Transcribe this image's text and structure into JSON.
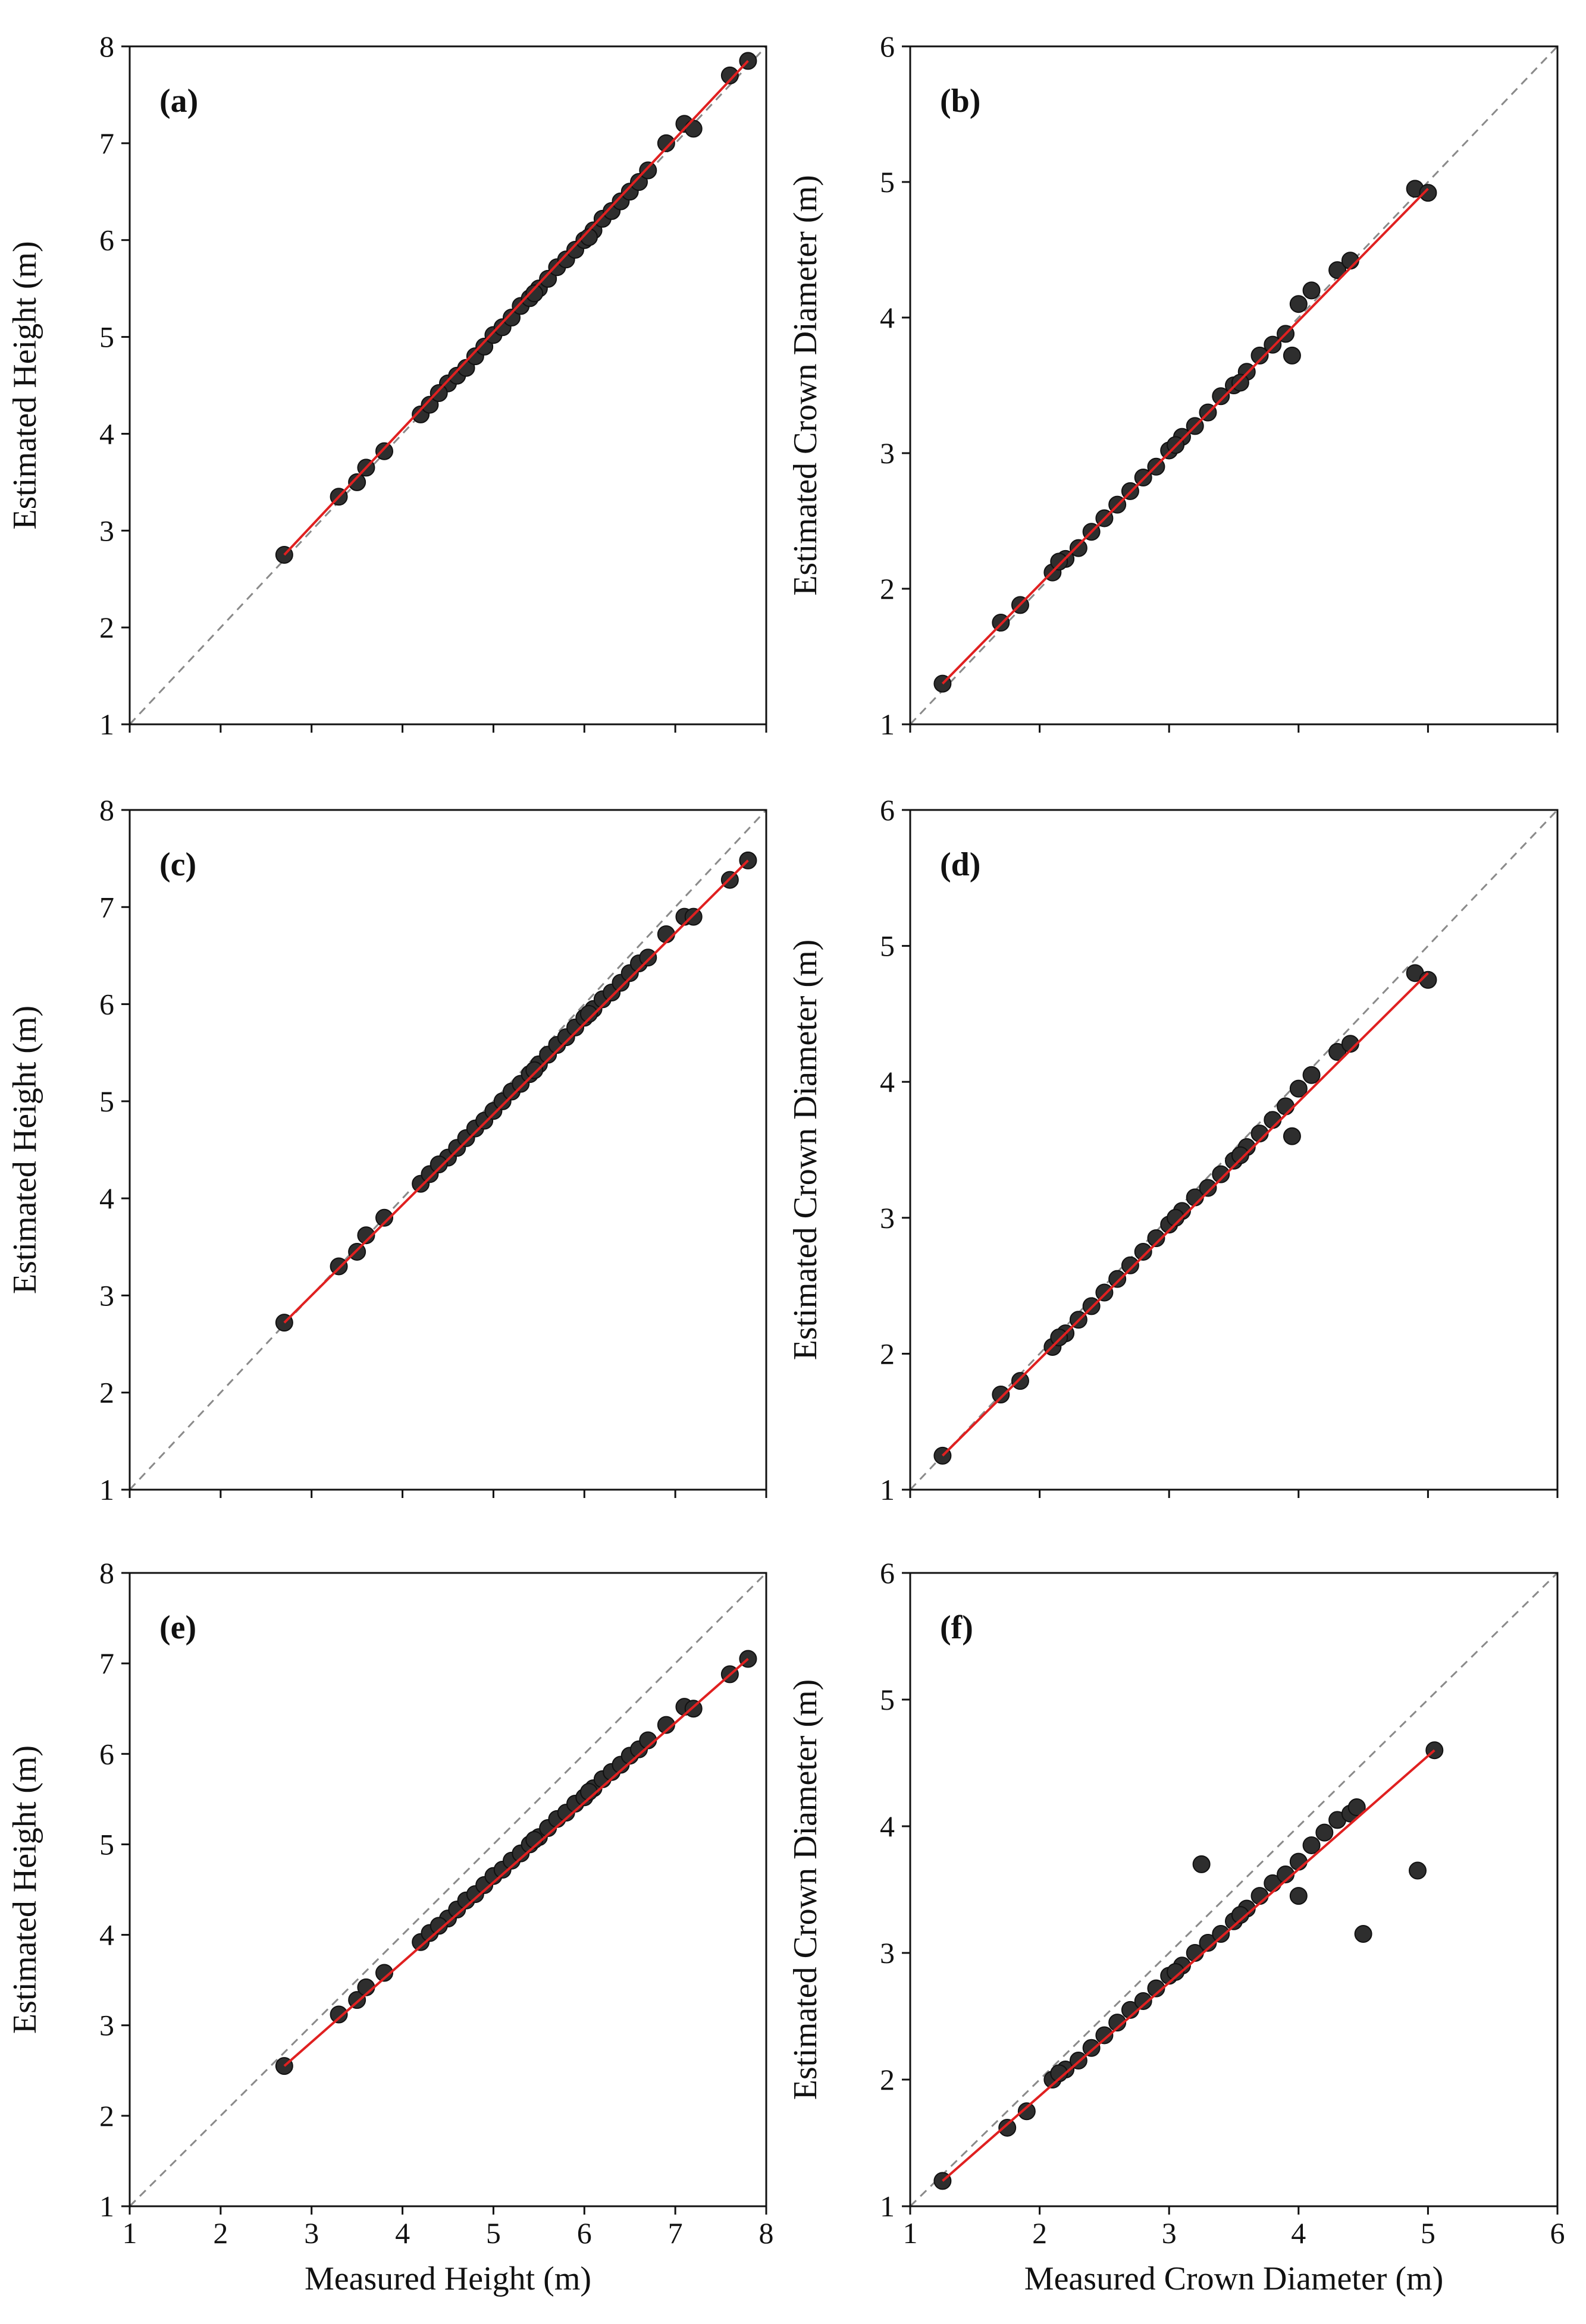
{
  "chart_data": [
    {
      "type": "scatter",
      "panel": "(a)",
      "xlabel": "",
      "ylabel": "Estimated Height (m)",
      "xlim": [
        1,
        8
      ],
      "ylim": [
        1,
        8
      ],
      "xticks": [
        "1",
        "2",
        "3",
        "4",
        "5",
        "6",
        "7",
        "8"
      ],
      "yticks": [
        "1",
        "2",
        "3",
        "4",
        "5",
        "6",
        "7",
        "8"
      ],
      "show_xtick_labels": false,
      "reference_line": "1:1",
      "fit_line": {
        "x": [
          2.7,
          7.8
        ],
        "y": [
          2.75,
          7.85
        ]
      },
      "points": {
        "x": [
          2.7,
          3.3,
          3.5,
          3.6,
          3.8,
          4.2,
          4.3,
          4.5,
          4.6,
          4.7,
          4.8,
          4.9,
          5.0,
          5.1,
          5.2,
          5.3,
          5.4,
          5.5,
          5.6,
          5.7,
          5.8,
          5.9,
          6.0,
          6.1,
          6.2,
          6.3,
          6.4,
          6.5,
          6.6,
          6.7,
          6.9,
          7.1,
          7.2,
          7.6,
          7.8,
          4.4,
          5.45,
          6.05
        ],
        "y": [
          2.75,
          3.35,
          3.5,
          3.65,
          3.82,
          4.2,
          4.3,
          4.52,
          4.6,
          4.68,
          4.8,
          4.9,
          5.02,
          5.1,
          5.2,
          5.32,
          5.4,
          5.5,
          5.6,
          5.72,
          5.8,
          5.9,
          6.0,
          6.1,
          6.22,
          6.3,
          6.4,
          6.5,
          6.6,
          6.72,
          7.0,
          7.2,
          7.15,
          7.7,
          7.85,
          4.42,
          5.45,
          6.03
        ]
      }
    },
    {
      "type": "scatter",
      "panel": "(b)",
      "xlabel": "",
      "ylabel": "Estimated Crown Diameter (m)",
      "xlim": [
        1,
        6
      ],
      "ylim": [
        1,
        6
      ],
      "xticks": [
        "1",
        "2",
        "3",
        "4",
        "5",
        "6"
      ],
      "yticks": [
        "1",
        "2",
        "3",
        "4",
        "5",
        "6"
      ],
      "show_xtick_labels": false,
      "reference_line": "1:1",
      "fit_line": {
        "x": [
          1.25,
          5.0
        ],
        "y": [
          1.3,
          4.95
        ]
      },
      "points": {
        "x": [
          1.25,
          1.7,
          1.85,
          2.1,
          2.2,
          2.3,
          2.4,
          2.5,
          2.6,
          2.7,
          2.8,
          2.9,
          3.0,
          3.1,
          3.2,
          3.3,
          3.4,
          3.5,
          3.6,
          3.7,
          3.8,
          3.9,
          3.95,
          4.0,
          4.1,
          4.3,
          4.4,
          4.9,
          5.0,
          2.15,
          3.05,
          3.55
        ],
        "y": [
          1.3,
          1.75,
          1.88,
          2.12,
          2.22,
          2.3,
          2.42,
          2.52,
          2.62,
          2.72,
          2.82,
          2.9,
          3.02,
          3.12,
          3.2,
          3.3,
          3.42,
          3.5,
          3.6,
          3.72,
          3.8,
          3.88,
          3.72,
          4.1,
          4.2,
          4.35,
          4.42,
          4.95,
          4.92,
          2.2,
          3.06,
          3.52
        ]
      }
    },
    {
      "type": "scatter",
      "panel": "(c)",
      "xlabel": "",
      "ylabel": "Estimated Height (m)",
      "xlim": [
        1,
        8
      ],
      "ylim": [
        1,
        8
      ],
      "xticks": [
        "1",
        "2",
        "3",
        "4",
        "5",
        "6",
        "7",
        "8"
      ],
      "yticks": [
        "1",
        "2",
        "3",
        "4",
        "5",
        "6",
        "7",
        "8"
      ],
      "show_xtick_labels": false,
      "reference_line": "1:1",
      "fit_line": {
        "x": [
          2.7,
          7.8
        ],
        "y": [
          2.72,
          7.48
        ]
      },
      "points": {
        "x": [
          2.7,
          3.3,
          3.5,
          3.6,
          3.8,
          4.2,
          4.3,
          4.5,
          4.6,
          4.7,
          4.8,
          4.9,
          5.0,
          5.1,
          5.2,
          5.3,
          5.4,
          5.5,
          5.6,
          5.7,
          5.8,
          5.9,
          6.0,
          6.1,
          6.2,
          6.3,
          6.4,
          6.5,
          6.6,
          6.7,
          6.9,
          7.1,
          7.2,
          7.6,
          7.8,
          4.4,
          5.45,
          6.05
        ],
        "y": [
          2.72,
          3.3,
          3.45,
          3.62,
          3.8,
          4.15,
          4.25,
          4.42,
          4.52,
          4.62,
          4.72,
          4.8,
          4.9,
          5.0,
          5.1,
          5.18,
          5.28,
          5.38,
          5.48,
          5.58,
          5.66,
          5.76,
          5.86,
          5.95,
          6.05,
          6.12,
          6.22,
          6.32,
          6.42,
          6.48,
          6.72,
          6.9,
          6.9,
          7.28,
          7.48,
          4.35,
          5.32,
          5.9
        ]
      }
    },
    {
      "type": "scatter",
      "panel": "(d)",
      "xlabel": "",
      "ylabel": "Estimated Crown Diameter (m)",
      "xlim": [
        1,
        6
      ],
      "ylim": [
        1,
        6
      ],
      "xticks": [
        "1",
        "2",
        "3",
        "4",
        "5",
        "6"
      ],
      "yticks": [
        "1",
        "2",
        "3",
        "4",
        "5",
        "6"
      ],
      "show_xtick_labels": false,
      "reference_line": "1:1",
      "fit_line": {
        "x": [
          1.25,
          5.0
        ],
        "y": [
          1.25,
          4.8
        ]
      },
      "points": {
        "x": [
          1.25,
          1.7,
          1.85,
          2.1,
          2.2,
          2.3,
          2.4,
          2.5,
          2.6,
          2.7,
          2.8,
          2.9,
          3.0,
          3.1,
          3.2,
          3.3,
          3.4,
          3.5,
          3.6,
          3.7,
          3.8,
          3.9,
          3.95,
          4.0,
          4.1,
          4.3,
          4.4,
          4.9,
          5.0,
          2.15,
          3.05,
          3.55
        ],
        "y": [
          1.25,
          1.7,
          1.8,
          2.05,
          2.15,
          2.25,
          2.35,
          2.45,
          2.55,
          2.65,
          2.75,
          2.85,
          2.95,
          3.05,
          3.15,
          3.22,
          3.32,
          3.42,
          3.52,
          3.62,
          3.72,
          3.82,
          3.6,
          3.95,
          4.05,
          4.22,
          4.28,
          4.8,
          4.75,
          2.12,
          3.0,
          3.46
        ]
      }
    },
    {
      "type": "scatter",
      "panel": "(e)",
      "xlabel": "Measured Height (m)",
      "ylabel": "Estimated Height (m)",
      "xlim": [
        1,
        8
      ],
      "ylim": [
        1,
        8
      ],
      "xticks": [
        "1",
        "2",
        "3",
        "4",
        "5",
        "6",
        "7",
        "8"
      ],
      "yticks": [
        "1",
        "2",
        "3",
        "4",
        "5",
        "6",
        "7",
        "8"
      ],
      "show_xtick_labels": true,
      "reference_line": "1:1",
      "fit_line": {
        "x": [
          2.7,
          7.8
        ],
        "y": [
          2.55,
          7.05
        ]
      },
      "points": {
        "x": [
          2.7,
          3.3,
          3.5,
          3.6,
          3.8,
          4.2,
          4.3,
          4.5,
          4.6,
          4.7,
          4.8,
          4.9,
          5.0,
          5.1,
          5.2,
          5.3,
          5.4,
          5.5,
          5.6,
          5.7,
          5.8,
          5.9,
          6.0,
          6.1,
          6.2,
          6.3,
          6.4,
          6.5,
          6.6,
          6.7,
          6.9,
          7.1,
          7.2,
          7.6,
          7.8,
          4.4,
          5.45,
          6.05
        ],
        "y": [
          2.55,
          3.12,
          3.28,
          3.42,
          3.58,
          3.92,
          4.02,
          4.18,
          4.28,
          4.38,
          4.45,
          4.55,
          4.65,
          4.72,
          4.82,
          4.9,
          5.0,
          5.08,
          5.18,
          5.28,
          5.35,
          5.45,
          5.52,
          5.62,
          5.72,
          5.8,
          5.88,
          5.98,
          6.05,
          6.15,
          6.32,
          6.52,
          6.5,
          6.88,
          7.05,
          4.1,
          5.05,
          5.58
        ]
      }
    },
    {
      "type": "scatter",
      "panel": "(f)",
      "xlabel": "Measured Crown Diameter (m)",
      "ylabel": "Estimated Crown Diameter (m)",
      "xlim": [
        1,
        6
      ],
      "ylim": [
        1,
        6
      ],
      "xticks": [
        "1",
        "2",
        "3",
        "4",
        "5",
        "6"
      ],
      "yticks": [
        "1",
        "2",
        "3",
        "4",
        "5",
        "6"
      ],
      "show_xtick_labels": true,
      "reference_line": "1:1",
      "fit_line": {
        "x": [
          1.25,
          5.05
        ],
        "y": [
          1.2,
          4.6
        ]
      },
      "points": {
        "x": [
          1.25,
          1.75,
          1.9,
          2.1,
          2.2,
          2.3,
          2.4,
          2.5,
          2.6,
          2.7,
          2.8,
          2.9,
          3.0,
          3.1,
          3.2,
          3.25,
          3.3,
          3.4,
          3.5,
          3.6,
          3.7,
          3.8,
          3.9,
          4.0,
          4.0,
          4.1,
          4.2,
          4.3,
          4.4,
          4.45,
          4.5,
          4.92,
          5.05,
          2.15,
          3.05,
          3.55
        ],
        "y": [
          1.2,
          1.62,
          1.75,
          2.0,
          2.08,
          2.15,
          2.25,
          2.35,
          2.45,
          2.55,
          2.62,
          2.72,
          2.82,
          2.9,
          3.0,
          3.7,
          3.08,
          3.15,
          3.25,
          3.35,
          3.45,
          3.55,
          3.62,
          3.72,
          3.45,
          3.85,
          3.95,
          4.05,
          4.1,
          4.15,
          3.15,
          3.65,
          4.6,
          2.05,
          2.85,
          3.3
        ]
      }
    }
  ]
}
